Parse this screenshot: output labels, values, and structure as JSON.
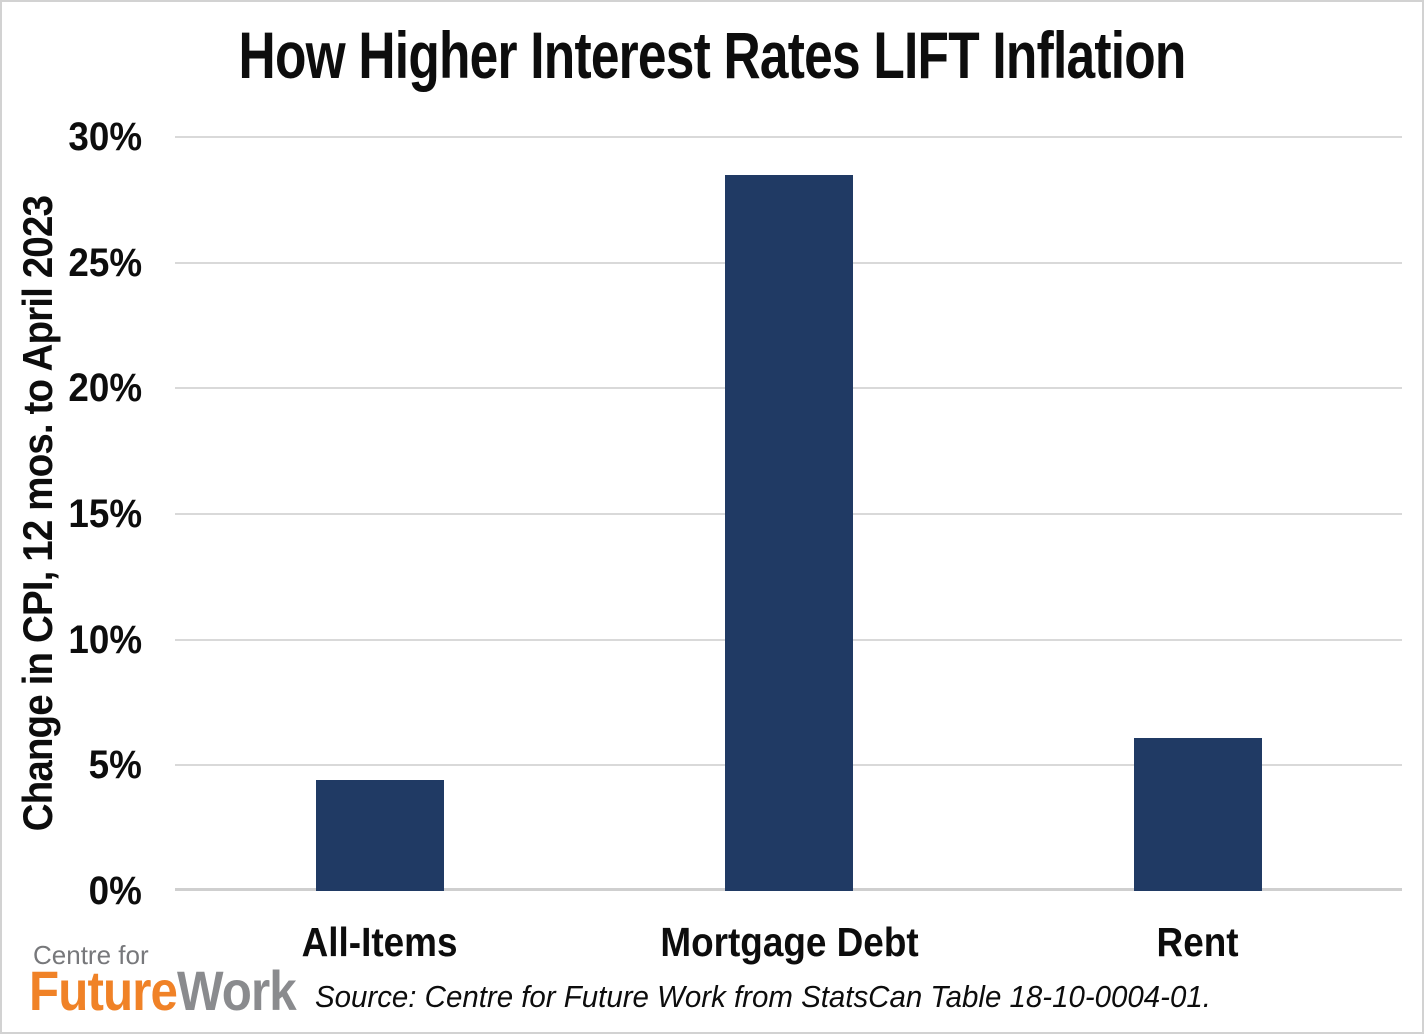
{
  "chart_data": {
    "type": "bar",
    "title": "How Higher Interest Rates LIFT Inflation",
    "categories": [
      "All-Items",
      "Mortgage Debt",
      "Rent"
    ],
    "values": [
      4.4,
      28.5,
      6.1
    ],
    "xlabel": "",
    "ylabel": "Change in CPI, 12 mos. to April 2023",
    "ylim": [
      0,
      30
    ],
    "ytick_step": 5,
    "ytick_labels": [
      "0%",
      "5%",
      "10%",
      "15%",
      "20%",
      "25%",
      "30%"
    ],
    "grid": true,
    "legend": false,
    "bar_color": "#203a64",
    "gridline_color": "#d9d9d9"
  },
  "source_note": "Source: Centre for Future Work from StatsCan Table 18-10-0004-01.",
  "logo": {
    "line1": "Centre for",
    "word_orange": "Future",
    "word_gray": "Work",
    "orange_color": "#f08227",
    "gray_color": "#8a8b8e"
  }
}
